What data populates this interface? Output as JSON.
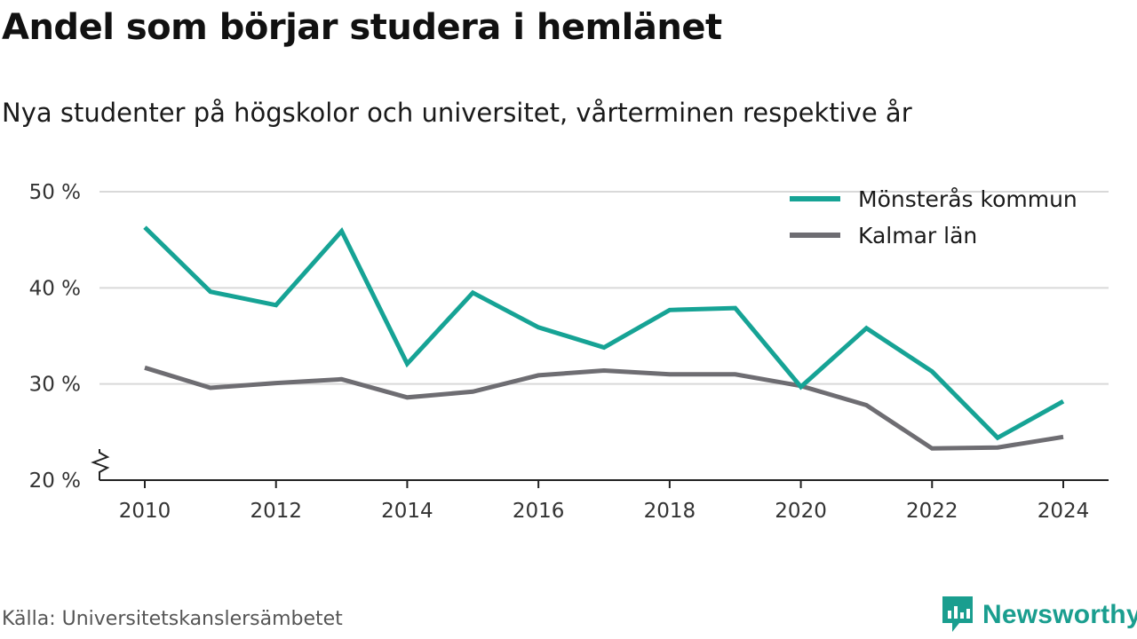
{
  "title": "Andel som börjar studera i hemlänet",
  "subtitle": "Nya studenter på högskolor och universitet, vårterminen respektive år",
  "source": "Källa: Universitetskanslersämbetet",
  "brand": "Newsworthy",
  "colors": {
    "teal": "#16a395",
    "gray": "#6e6d72",
    "grid": "#d9d9d9",
    "brand": "#1a9e8f"
  },
  "chart_data": {
    "type": "line",
    "x": [
      2010,
      2011,
      2012,
      2013,
      2014,
      2015,
      2016,
      2017,
      2018,
      2019,
      2020,
      2021,
      2022,
      2023,
      2024
    ],
    "series": [
      {
        "name": "Mönsterås kommun",
        "color": "#16a395",
        "values": [
          46.3,
          39.6,
          38.2,
          45.9,
          32.1,
          39.5,
          35.9,
          33.8,
          37.7,
          37.9,
          29.7,
          35.8,
          31.3,
          24.4,
          28.2
        ]
      },
      {
        "name": "Kalmar län",
        "color": "#6e6d72",
        "values": [
          31.7,
          29.6,
          30.1,
          30.5,
          28.6,
          29.2,
          30.9,
          31.4,
          31.0,
          31.0,
          29.8,
          27.8,
          23.3,
          23.4,
          24.5
        ]
      }
    ],
    "ylim": [
      20,
      50
    ],
    "yticks": [
      20,
      30,
      40,
      50
    ],
    "ytick_labels": [
      "20 %",
      "30 %",
      "40 %",
      "50 %"
    ],
    "xticks": [
      2010,
      2012,
      2014,
      2016,
      2018,
      2020,
      2022,
      2024
    ],
    "xtick_labels": [
      "2010",
      "2012",
      "2014",
      "2016",
      "2018",
      "2020",
      "2022",
      "2024"
    ],
    "axis_break": true,
    "grid": true,
    "legend": "top-right"
  }
}
